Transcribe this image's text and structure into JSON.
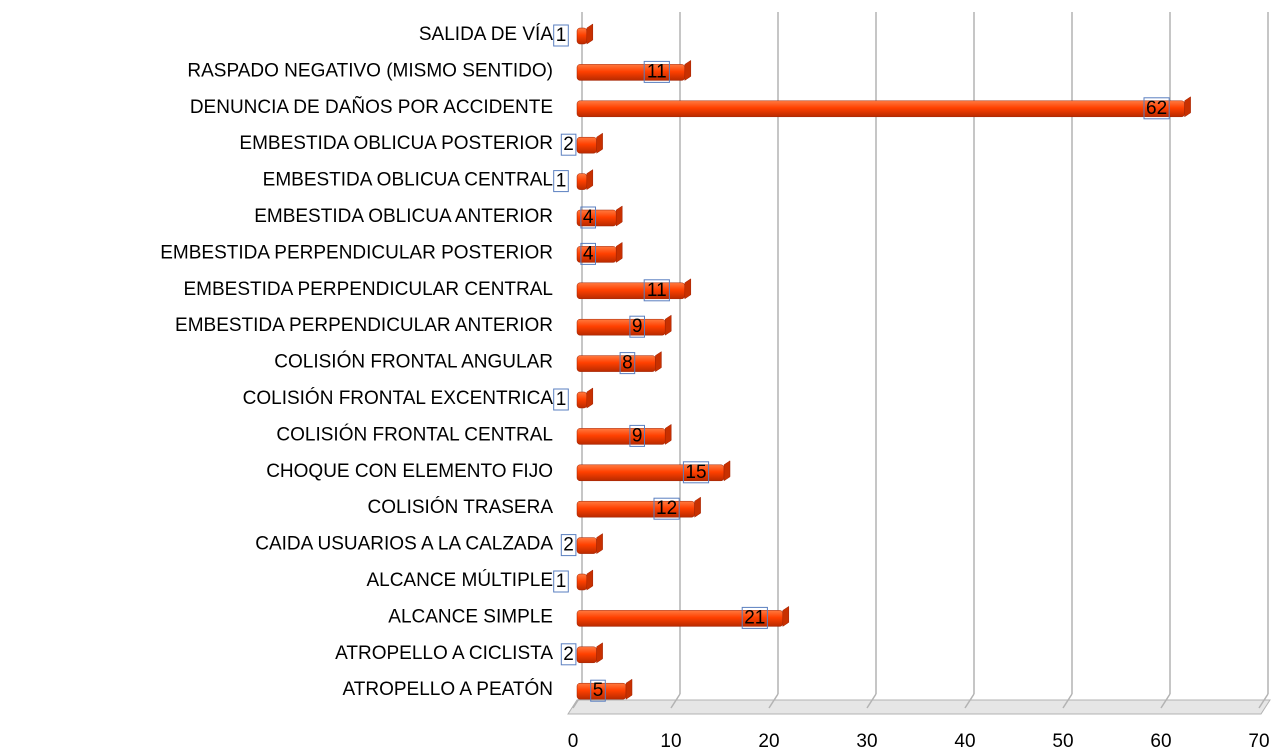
{
  "chart_data": {
    "type": "bar",
    "orientation": "horizontal",
    "categories": [
      "SALIDA DE VÍA",
      "RASPADO NEGATIVO (MISMO SENTIDO)",
      "DENUNCIA DE DAÑOS POR ACCIDENTE",
      "EMBESTIDA OBLICUA POSTERIOR",
      "EMBESTIDA OBLICUA CENTRAL",
      "EMBESTIDA OBLICUA ANTERIOR",
      "EMBESTIDA PERPENDICULAR POSTERIOR",
      "EMBESTIDA PERPENDICULAR CENTRAL",
      "EMBESTIDA PERPENDICULAR ANTERIOR",
      "COLISIÓN FRONTAL ANGULAR",
      "COLISIÓN FRONTAL EXCENTRICA",
      "COLISIÓN FRONTAL CENTRAL",
      "CHOQUE CON ELEMENTO FIJO",
      "COLISIÓN TRASERA",
      "CAIDA USUARIOS A LA CALZADA",
      "ALCANCE MÚLTIPLE",
      "ALCANCE SIMPLE",
      "ATROPELLO A CICLISTA",
      "ATROPELLO A PEATÓN"
    ],
    "values": [
      1,
      11,
      62,
      2,
      1,
      4,
      4,
      11,
      9,
      8,
      1,
      9,
      15,
      12,
      2,
      1,
      21,
      2,
      5
    ],
    "color": "#ff4a10",
    "xlim": [
      0,
      70
    ],
    "xticks": [
      0,
      10,
      20,
      30,
      40,
      50,
      60,
      70
    ],
    "grid": true
  }
}
